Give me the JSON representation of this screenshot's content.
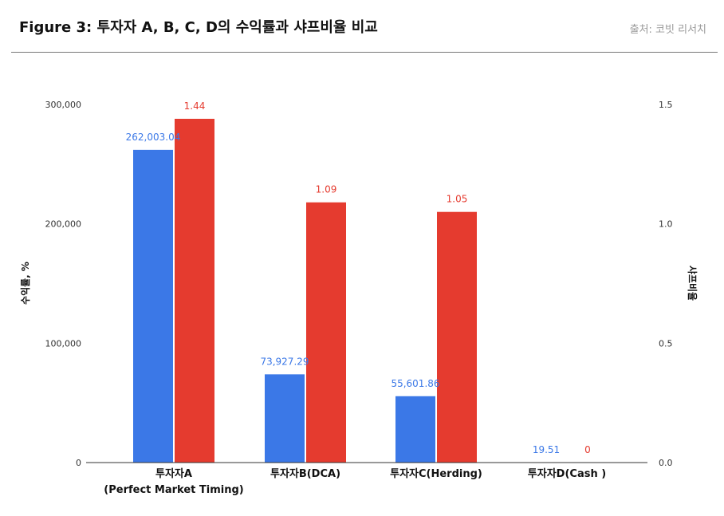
{
  "header": {
    "title": "Figure 3: 투자자 A, B, C, D의 수익률과 샤프비율 비교",
    "source": "출처: 코빗 리서치"
  },
  "watermark": "korbit",
  "colors": {
    "return": "#3b78e7",
    "sharpe": "#e53b2f"
  },
  "chart_data": {
    "type": "bar",
    "categories": [
      [
        "투자자A",
        "(Perfect Market Timing)"
      ],
      [
        "투자자B(DCA)"
      ],
      [
        "투자자C(Herding)"
      ],
      [
        "투자자D(Cash )"
      ]
    ],
    "series": [
      {
        "axis": "left",
        "values": [
          262003.04,
          73927.29,
          55601.86,
          19.51
        ],
        "labels": [
          "262,003.04",
          "73,927.29",
          "55,601.86",
          "19.51"
        ]
      },
      {
        "axis": "right",
        "values": [
          1.44,
          1.09,
          1.05,
          0
        ],
        "labels": [
          "1.44",
          "1.09",
          "1.05",
          "0"
        ]
      }
    ],
    "y_left": {
      "label": "수익률, %",
      "ylim": [
        0,
        300000
      ],
      "ticks": [
        "0",
        "100,000",
        "200,000",
        "300,000"
      ]
    },
    "y_right": {
      "label": "샤프비율",
      "ylim": [
        0,
        1.5
      ],
      "ticks": [
        "0.0",
        "0.5",
        "1.0",
        "1.5"
      ]
    },
    "grid": false,
    "legend": "none"
  }
}
